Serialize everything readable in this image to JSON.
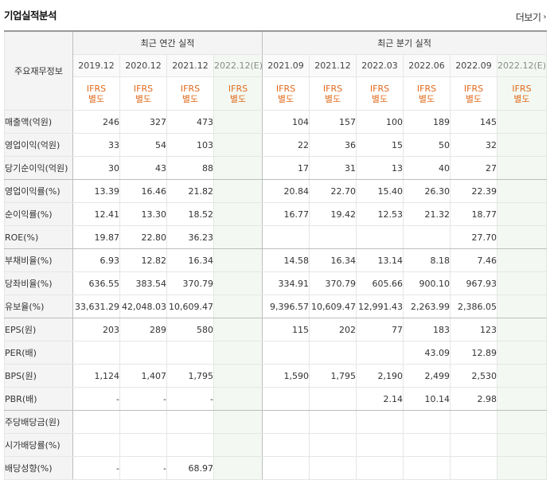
{
  "title": "기업실적분석",
  "more_label": "더보기",
  "header": {
    "row_label": "주요재무정보",
    "annual_group": "최근 연간 실적",
    "quarter_group": "최근 분기 실적",
    "periods": [
      "2019.12",
      "2020.12",
      "2021.12",
      "2022.12(E)",
      "2021.09",
      "2021.12",
      "2022.03",
      "2022.06",
      "2022.09",
      "2022.12(E)"
    ],
    "ifrs_line1": "IFRS",
    "ifrs_line2": "별도"
  },
  "rows": [
    {
      "label": "매출액(억원)",
      "values": [
        "246",
        "327",
        "473",
        "",
        "104",
        "157",
        "100",
        "189",
        "145",
        ""
      ]
    },
    {
      "label": "영업이익(억원)",
      "values": [
        "33",
        "54",
        "103",
        "",
        "22",
        "36",
        "15",
        "50",
        "32",
        ""
      ]
    },
    {
      "label": "당기순이익(억원)",
      "values": [
        "30",
        "43",
        "88",
        "",
        "17",
        "31",
        "13",
        "40",
        "27",
        ""
      ]
    },
    {
      "label": "영업이익률(%)",
      "values": [
        "13.39",
        "16.46",
        "21.82",
        "",
        "20.84",
        "22.70",
        "15.40",
        "26.30",
        "22.39",
        ""
      ]
    },
    {
      "label": "순이익률(%)",
      "values": [
        "12.41",
        "13.30",
        "18.52",
        "",
        "16.77",
        "19.42",
        "12.53",
        "21.32",
        "18.77",
        ""
      ]
    },
    {
      "label": "ROE(%)",
      "values": [
        "19.87",
        "22.80",
        "36.23",
        "",
        "",
        "",
        "",
        "",
        "27.70",
        ""
      ]
    },
    {
      "label": "부채비율(%)",
      "values": [
        "6.93",
        "12.82",
        "16.34",
        "",
        "14.58",
        "16.34",
        "13.14",
        "8.18",
        "7.46",
        ""
      ]
    },
    {
      "label": "당좌비율(%)",
      "values": [
        "636.55",
        "383.54",
        "370.79",
        "",
        "334.91",
        "370.79",
        "605.66",
        "900.10",
        "967.93",
        ""
      ]
    },
    {
      "label": "유보율(%)",
      "values": [
        "33,631.29",
        "42,048.03",
        "10,609.47",
        "",
        "9,396.57",
        "10,609.47",
        "12,991.43",
        "2,263.99",
        "2,386.05",
        ""
      ]
    },
    {
      "label": "EPS(원)",
      "values": [
        "203",
        "289",
        "580",
        "",
        "115",
        "202",
        "77",
        "183",
        "123",
        ""
      ]
    },
    {
      "label": "PER(배)",
      "values": [
        "",
        "",
        "",
        "",
        "",
        "",
        "",
        "43.09",
        "12.89",
        ""
      ]
    },
    {
      "label": "BPS(원)",
      "values": [
        "1,124",
        "1,407",
        "1,795",
        "",
        "1,590",
        "1,795",
        "2,190",
        "2,499",
        "2,530",
        ""
      ]
    },
    {
      "label": "PBR(배)",
      "values": [
        "-",
        "-",
        "-",
        "",
        "",
        "",
        "2.14",
        "10.14",
        "2.98",
        ""
      ]
    },
    {
      "label": "주당배당금(원)",
      "values": [
        "",
        "",
        "",
        "",
        "",
        "",
        "",
        "",
        "",
        ""
      ]
    },
    {
      "label": "시가배당률(%)",
      "values": [
        "",
        "",
        "",
        "",
        "",
        "",
        "",
        "",
        "",
        ""
      ]
    },
    {
      "label": "배당성향(%)",
      "values": [
        "-",
        "-",
        "68.97",
        "",
        "",
        "",
        "",
        "",
        "",
        ""
      ]
    }
  ]
}
